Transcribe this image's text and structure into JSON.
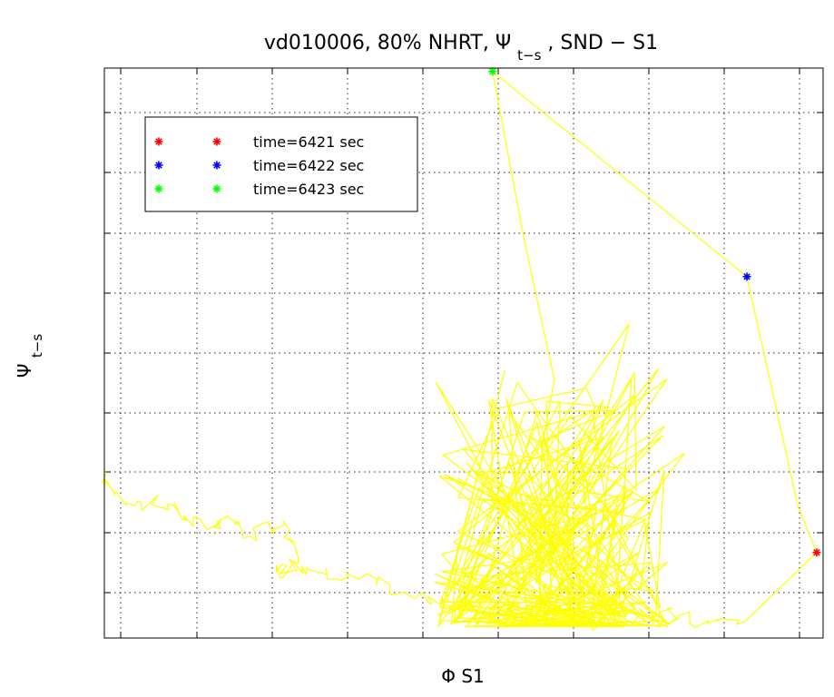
{
  "chart_data": {
    "type": "line",
    "title": {
      "prefix": "vd010006, 80% NHRT,",
      "psi": "Ψ",
      "psi_sub": "t−s",
      "suffix": ", SND − S1"
    },
    "xlabel": "Φ S1",
    "ylabel": {
      "main": "Ψ",
      "sub": "t−s"
    },
    "x_tick_labels": [],
    "y_tick_labels": [],
    "grid": true,
    "legend_placement": "top-left",
    "line_color": "#ffff00",
    "legend": [
      {
        "label": "time=6421 sec",
        "color": "#ff0000"
      },
      {
        "label": "time=6422 sec",
        "color": "#0000ff"
      },
      {
        "label": "time=6423 sec",
        "color": "#00ff00"
      }
    ],
    "markers": [
      {
        "time": "6421",
        "x": 0.991,
        "y": 0.15,
        "color": "#ff0000"
      },
      {
        "time": "6422",
        "x": 0.894,
        "y": 0.634,
        "color": "#0000ff"
      },
      {
        "time": "6423",
        "x": 0.54,
        "y": 0.994,
        "color": "#00ff00"
      }
    ],
    "trajectory_x": [
      0.0,
      0.014,
      0.051,
      0.096,
      0.121,
      0.154,
      0.172,
      0.203,
      0.229,
      0.258,
      0.27,
      0.239,
      0.275,
      0.309,
      0.354,
      0.397,
      0.451,
      0.473,
      0.513,
      0.556,
      0.592,
      0.632,
      0.651,
      0.69,
      0.748,
      0.773,
      0.799,
      0.839,
      0.891,
      0.991,
      0.965,
      0.894,
      0.54,
      0.584,
      0.626,
      0.608,
      0.73,
      0.666,
      0.771,
      0.59,
      0.694,
      0.6,
      0.716,
      0.578,
      0.807,
      0.659,
      0.587,
      0.697,
      0.661,
      0.683,
      0.712,
      0.627,
      0.587,
      0.726,
      0.668,
      0.755,
      0.66,
      0.703,
      0.595,
      0.681,
      0.784,
      0.621,
      0.728
    ],
    "trajectory_y": [
      0.294,
      0.251,
      0.238,
      0.233,
      0.201,
      0.197,
      0.212,
      0.178,
      0.199,
      0.19,
      0.131,
      0.116,
      0.126,
      0.122,
      0.103,
      0.094,
      0.062,
      0.058,
      0.052,
      0.056,
      0.041,
      0.044,
      0.037,
      0.026,
      0.045,
      0.042,
      0.034,
      0.026,
      0.029,
      0.15,
      0.231,
      0.634,
      0.994,
      0.7,
      0.453,
      0.33,
      0.551,
      0.237,
      0.473,
      0.181,
      0.417,
      0.096,
      0.364,
      0.132,
      0.324,
      0.074,
      0.256,
      0.068,
      0.345,
      0.043,
      0.206,
      0.08,
      0.056,
      0.038,
      0.154,
      0.028,
      0.103,
      0.063,
      0.054,
      0.021,
      0.133,
      0.049,
      0.042
    ]
  }
}
